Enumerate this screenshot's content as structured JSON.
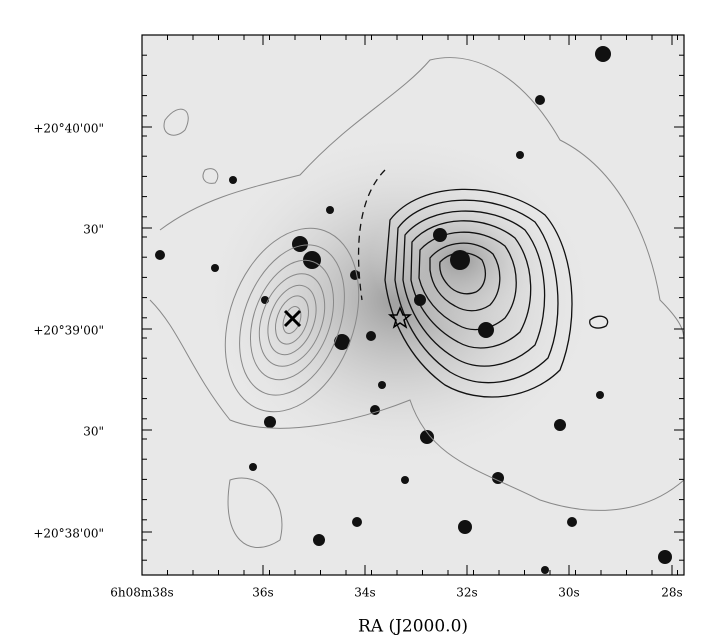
{
  "figure": {
    "x_axis_label": "RA (J2000.0)",
    "x_ticks": [
      "6h08m38s",
      "36s",
      "34s",
      "32s",
      "30s",
      "28s"
    ],
    "y_ticks": [
      "+20°40'00\"",
      "30\"",
      "+20°39'00\"",
      "30\"",
      "+20°38'00\""
    ]
  }
}
